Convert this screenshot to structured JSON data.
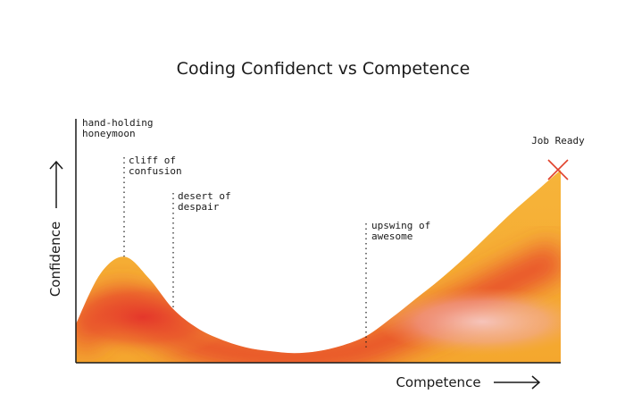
{
  "chart_data": {
    "type": "area",
    "title": "Coding Confidenct vs Competence",
    "xlabel": "Competence",
    "ylabel": "Confidence",
    "xlim": [
      0,
      100
    ],
    "ylim": [
      0,
      100
    ],
    "grid": false,
    "legend": "none",
    "series": [
      {
        "x": [
          0,
          5,
          10,
          15,
          20,
          25,
          30,
          35,
          40,
          45,
          50,
          55,
          60,
          65,
          70,
          75,
          80,
          85,
          90,
          95,
          100
        ],
        "values": [
          20,
          46,
          55,
          44,
          28,
          18,
          12,
          8,
          6,
          5,
          6,
          9,
          14,
          23,
          33,
          43,
          54,
          66,
          78,
          89,
          100
        ]
      }
    ],
    "annotations": [
      {
        "label": "hand-holding honeymoon",
        "lines": [
          "hand-holding",
          "honeymoon"
        ],
        "x": 0,
        "y": 20
      },
      {
        "label": "cliff of confusion",
        "lines": [
          "cliff of",
          "confusion"
        ],
        "x": 10,
        "y": 55
      },
      {
        "label": "desert of despair",
        "lines": [
          "desert of",
          "despair"
        ],
        "x": 20,
        "y": 28
      },
      {
        "label": "upswing of awesome",
        "lines": [
          "upswing of",
          "awesome"
        ],
        "x": 60,
        "y": 8
      },
      {
        "label": "Job Ready",
        "lines": [
          "Job Ready"
        ],
        "x": 100,
        "y": 100,
        "marker": "x"
      }
    ],
    "colors": {
      "edge": "#f0b030",
      "core": "#e5392c",
      "pink": "#f3b6b3",
      "marker": "#e0402a",
      "axis": "#1a1a1a"
    }
  }
}
